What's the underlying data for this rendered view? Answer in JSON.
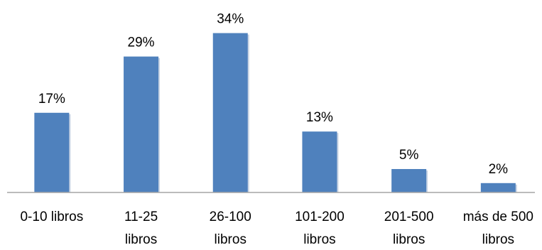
{
  "chart_data": {
    "type": "bar",
    "categories": [
      [
        "0-10 libros"
      ],
      [
        "11-25",
        "libros"
      ],
      [
        "26-100",
        "libros"
      ],
      [
        "101-200",
        "libros"
      ],
      [
        "201-500",
        "libros"
      ],
      [
        "más de 500",
        "libros"
      ]
    ],
    "values": [
      17,
      29,
      34,
      13,
      5,
      2
    ],
    "data_labels": [
      "17%",
      "29%",
      "34%",
      "13%",
      "5%",
      "2%"
    ],
    "unit": "%",
    "title": "",
    "xlabel": "",
    "ylabel": "",
    "grid": false,
    "legend": "none",
    "colors": {
      "bar": "#4f81bd",
      "bar_shadow": "#c9d4e4",
      "axis": "#a6a6a6",
      "text": "#000000"
    }
  }
}
